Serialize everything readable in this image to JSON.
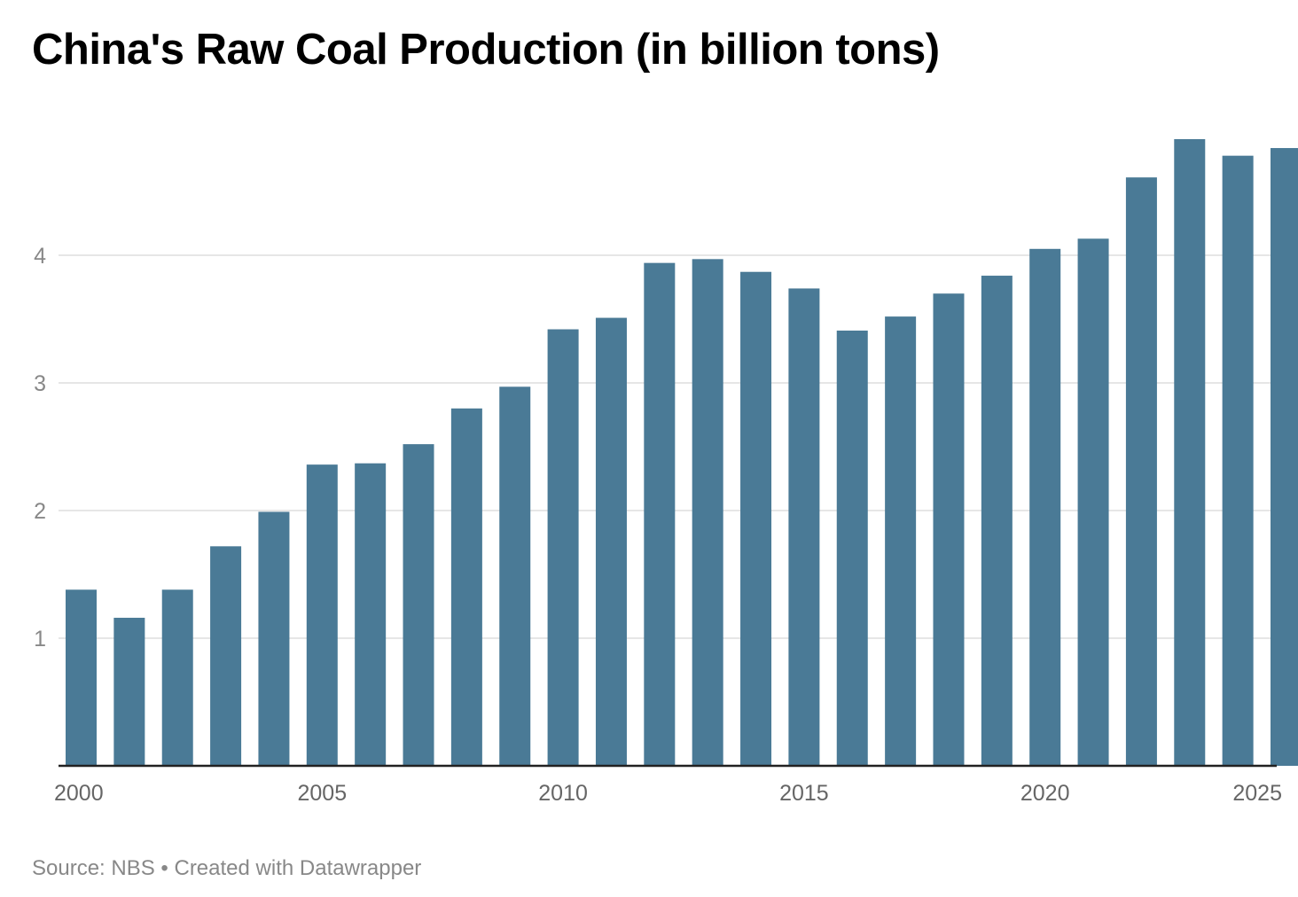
{
  "title": "China's Raw Coal Production (in billion tons)",
  "footer": {
    "source": "Source: NBS",
    "separator": " • ",
    "credit": "Created with Datawrapper"
  },
  "colors": {
    "bar": "#4a7a96",
    "grid": "#dddddd",
    "axis": "#222222",
    "tick_label": "#888888",
    "x_label": "#666666"
  },
  "chart_data": {
    "type": "bar",
    "title": "China's Raw Coal Production (in billion tons)",
    "xlabel": "",
    "ylabel": "",
    "ylim": [
      0,
      5.0
    ],
    "y_ticks": [
      1,
      2,
      3,
      4
    ],
    "x_tick_labels": [
      "2000",
      "2005",
      "2010",
      "2015",
      "2020",
      "2025"
    ],
    "grid": true,
    "categories": [
      "2000",
      "2001",
      "2002",
      "2003",
      "2004",
      "2005",
      "2006",
      "2007",
      "2008",
      "2009",
      "2010",
      "2011",
      "2012",
      "2013",
      "2014",
      "2015",
      "2016",
      "2017",
      "2018",
      "2019",
      "2020",
      "2021",
      "2022",
      "2023",
      "2024",
      "2025"
    ],
    "values": [
      1.38,
      1.16,
      1.38,
      1.72,
      1.99,
      2.36,
      2.37,
      2.52,
      2.8,
      2.97,
      3.42,
      3.51,
      3.94,
      3.97,
      3.87,
      3.74,
      3.41,
      3.52,
      3.7,
      3.84,
      4.05,
      4.13,
      4.61,
      4.91,
      4.78,
      4.84
    ]
  }
}
